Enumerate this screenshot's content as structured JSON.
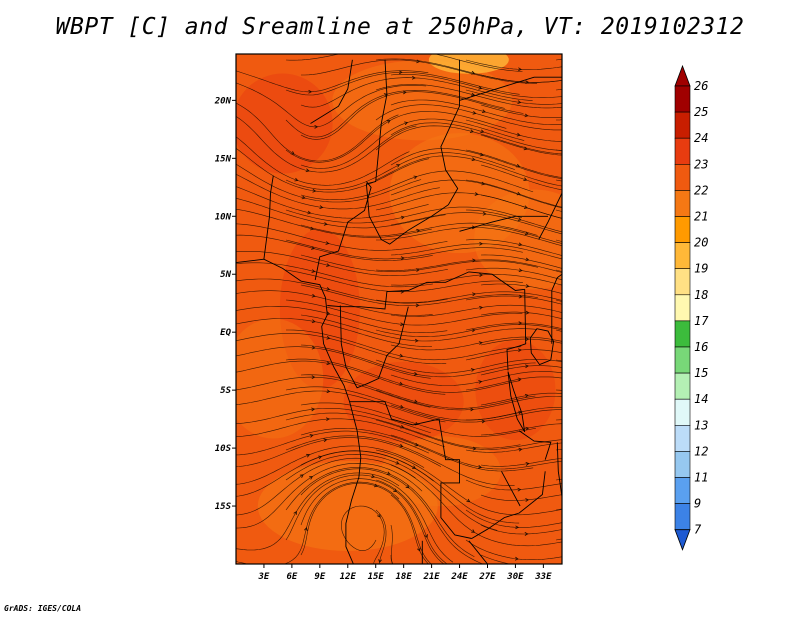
{
  "title": "WBPT [C] and Sreamline at 250hPa, VT: 2019102312",
  "footer": "GrADS: IGES/COLA",
  "map": {
    "lon_range": [
      0,
      35
    ],
    "lat_range": [
      -20,
      24
    ],
    "lon_ticks": [
      "3E",
      "6E",
      "9E",
      "12E",
      "15E",
      "18E",
      "21E",
      "24E",
      "27E",
      "30E",
      "33E"
    ],
    "lat_ticks": [
      "20N",
      "15N",
      "10N",
      "5N",
      "EQ",
      "5S",
      "10S",
      "15S"
    ],
    "field_variable": "WBPT",
    "field_units": "C",
    "level": "250hPa",
    "dominant_value_range": [
      22,
      24
    ]
  },
  "colorbar": {
    "labels": [
      "26",
      "25",
      "24",
      "23",
      "22",
      "21",
      "20",
      "19",
      "18",
      "17",
      "16",
      "15",
      "14",
      "13",
      "12",
      "11",
      "9",
      "7"
    ],
    "colors": [
      "#a00000",
      "#c81e00",
      "#e83c10",
      "#f05a10",
      "#f57814",
      "#ff9a00",
      "#ffb838",
      "#ffe084",
      "#fff8b0",
      "#3cbc3c",
      "#78d878",
      "#b4f0b4",
      "#e0f8f8",
      "#bcdcf8",
      "#96c8f0",
      "#5aa0f0",
      "#3c82e6",
      "#1e5ad2"
    ],
    "top_arrow_color": "#a00000",
    "bottom_arrow_color": "#1e5ad2"
  }
}
